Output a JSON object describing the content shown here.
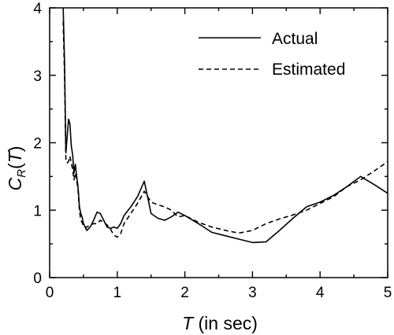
{
  "chart_data": {
    "type": "line",
    "title": "",
    "xlabel": {
      "symbol": "T",
      "rest": " (in sec)"
    },
    "ylabel": {
      "main": "C",
      "subscript": "R",
      "open": "(",
      "arg": "T",
      "close": ")"
    },
    "xlim": [
      0,
      5
    ],
    "ylim": [
      0,
      4
    ],
    "xticks": [
      0,
      1,
      2,
      3,
      4,
      5
    ],
    "yticks": [
      0,
      1,
      2,
      3,
      4
    ],
    "xtick_labels": [
      "0",
      "1",
      "2",
      "3",
      "4",
      "5"
    ],
    "ytick_labels": [
      "0",
      "1",
      "2",
      "3",
      "4"
    ],
    "grid": false,
    "legend_position": "top-right",
    "series": [
      {
        "name": "Actual",
        "style": "solid",
        "color": "#000000",
        "x": [
          0.2,
          0.22,
          0.24,
          0.26,
          0.28,
          0.3,
          0.32,
          0.34,
          0.36,
          0.38,
          0.4,
          0.42,
          0.44,
          0.46,
          0.48,
          0.5,
          0.55,
          0.6,
          0.65,
          0.7,
          0.75,
          0.8,
          0.85,
          0.9,
          0.95,
          1.0,
          1.05,
          1.1,
          1.2,
          1.3,
          1.4,
          1.5,
          1.6,
          1.7,
          1.8,
          1.9,
          2.0,
          2.2,
          2.4,
          2.6,
          2.8,
          3.0,
          3.2,
          3.4,
          3.6,
          3.8,
          4.0,
          4.2,
          4.4,
          4.6,
          4.8,
          5.0
        ],
        "y": [
          4.0,
          3.2,
          1.85,
          2.1,
          2.35,
          2.28,
          1.95,
          1.82,
          1.55,
          1.68,
          1.5,
          1.35,
          1.05,
          0.95,
          0.9,
          0.8,
          0.7,
          0.75,
          0.85,
          0.97,
          0.95,
          0.85,
          0.75,
          0.73,
          0.75,
          0.73,
          0.8,
          0.92,
          1.05,
          1.2,
          1.43,
          0.95,
          0.88,
          0.85,
          0.9,
          0.97,
          0.92,
          0.8,
          0.67,
          0.62,
          0.57,
          0.52,
          0.53,
          0.7,
          0.88,
          1.05,
          1.12,
          1.22,
          1.35,
          1.5,
          1.38,
          1.25
        ]
      },
      {
        "name": "Estimated",
        "style": "dashed",
        "color": "#000000",
        "x": [
          0.2,
          0.22,
          0.24,
          0.26,
          0.28,
          0.3,
          0.32,
          0.34,
          0.36,
          0.38,
          0.4,
          0.42,
          0.44,
          0.46,
          0.48,
          0.5,
          0.55,
          0.6,
          0.65,
          0.7,
          0.75,
          0.8,
          0.85,
          0.9,
          0.95,
          1.0,
          1.05,
          1.1,
          1.2,
          1.3,
          1.4,
          1.5,
          1.6,
          1.7,
          1.8,
          1.9,
          2.0,
          2.2,
          2.4,
          2.6,
          2.8,
          3.0,
          3.2,
          3.4,
          3.6,
          3.8,
          4.0,
          4.2,
          4.4,
          4.6,
          4.8,
          5.0
        ],
        "y": [
          3.8,
          3.0,
          1.75,
          1.7,
          1.72,
          1.8,
          1.7,
          1.6,
          1.45,
          1.55,
          1.45,
          1.3,
          1.0,
          0.85,
          0.82,
          0.75,
          0.75,
          0.78,
          0.8,
          0.8,
          0.85,
          0.82,
          0.78,
          0.72,
          0.63,
          0.6,
          0.65,
          0.8,
          0.95,
          1.1,
          1.28,
          1.12,
          1.08,
          1.05,
          1.0,
          0.9,
          0.92,
          0.82,
          0.75,
          0.7,
          0.66,
          0.7,
          0.8,
          0.87,
          0.93,
          1.0,
          1.1,
          1.2,
          1.35,
          1.45,
          1.58,
          1.72
        ]
      }
    ]
  }
}
